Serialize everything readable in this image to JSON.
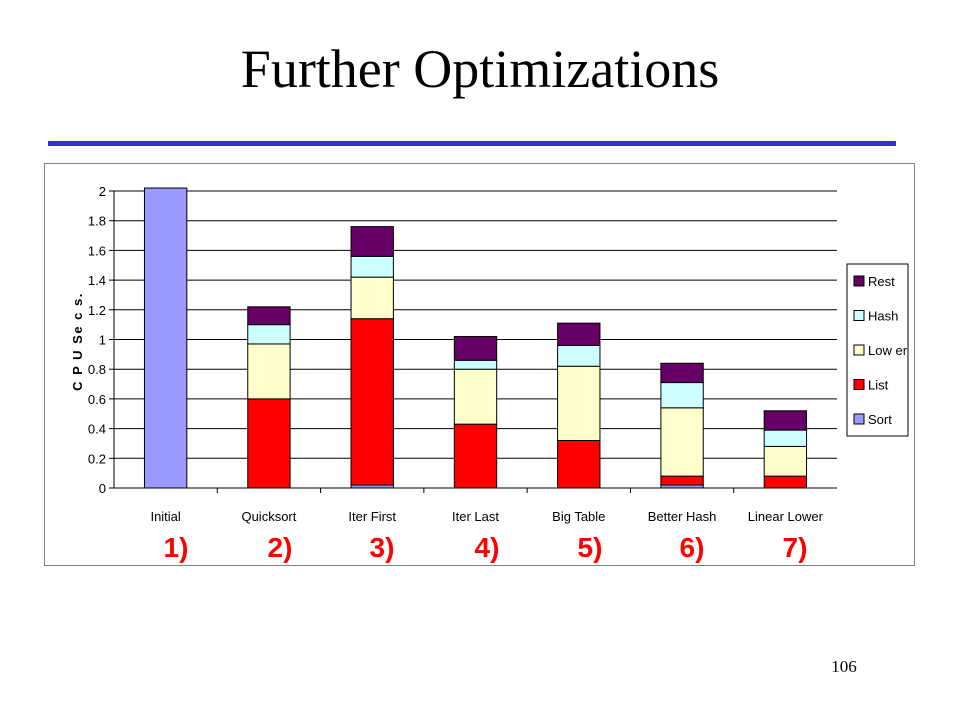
{
  "slide": {
    "title": "Further Optimizations",
    "page_number": "106",
    "step_labels": [
      "1)",
      "2)",
      "3)",
      "4)",
      "5)",
      "6)",
      "7)"
    ]
  },
  "colors": {
    "rule": "#3333cc",
    "Sort": "#9999ff",
    "List": "#ff0000",
    "Lower": "#ffffcc",
    "Hash": "#ccffff",
    "Rest": "#660066"
  },
  "chart_data": {
    "type": "bar",
    "stacked": true,
    "title": "",
    "xlabel": "",
    "ylabel": "C P U  Se c s.",
    "ylim": [
      0,
      2
    ],
    "yticks": [
      "0",
      "0.2",
      "0.4",
      "0.6",
      "0.8",
      "1",
      "1.2",
      "1.4",
      "1.6",
      "1.8",
      "2"
    ],
    "grid": true,
    "legend_position": "right",
    "categories": [
      "Initial",
      "Quicksort",
      "Iter First",
      "Iter Last",
      "Big Table",
      "Better Hash",
      "Linear Lower"
    ],
    "series": [
      {
        "name": "Sort",
        "values": [
          2.02,
          0,
          0.02,
          0,
          0,
          0.02,
          0
        ]
      },
      {
        "name": "List",
        "values": [
          0,
          0.6,
          1.12,
          0.43,
          0.32,
          0.06,
          0.08
        ]
      },
      {
        "name": "Lower",
        "values": [
          0,
          0.37,
          0.28,
          0.37,
          0.5,
          0.46,
          0.2
        ]
      },
      {
        "name": "Hash",
        "values": [
          0,
          0.13,
          0.14,
          0.06,
          0.14,
          0.17,
          0.11
        ]
      },
      {
        "name": "Rest",
        "values": [
          0,
          0.12,
          0.2,
          0.16,
          0.15,
          0.13,
          0.13
        ]
      }
    ],
    "legend_order": [
      "Rest",
      "Hash",
      "Lower",
      "List",
      "Sort"
    ],
    "legend_labels": {
      "Rest": "Rest",
      "Hash": "Hash",
      "Lower": "Low er",
      "List": "List",
      "Sort": "Sort"
    }
  }
}
